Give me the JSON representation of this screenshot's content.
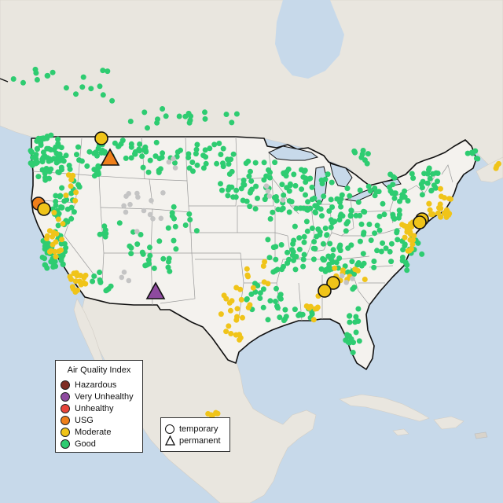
{
  "legend": {
    "title": "Air Quality Index",
    "items": [
      {
        "label": "Hazardous",
        "color": "#7e2d24"
      },
      {
        "label": "Very Unhealthy",
        "color": "#8e4a9f"
      },
      {
        "label": "Unhealthy",
        "color": "#e8443a"
      },
      {
        "label": "USG",
        "color": "#ef7f1a"
      },
      {
        "label": "Moderate",
        "color": "#f0c419"
      },
      {
        "label": "Good",
        "color": "#2ecc71"
      }
    ]
  },
  "monitor_types": {
    "items": [
      {
        "label": "temporary",
        "symbol": "circle"
      },
      {
        "label": "permanent",
        "symbol": "triangle"
      }
    ]
  },
  "colors": {
    "water": "#c7d9ea",
    "land_us": "#f4f2ee",
    "land_other": "#e8e4dc",
    "offline_station": "#c4c4c4"
  },
  "highlighted_monitors": [
    {
      "type": "temporary",
      "category": "Moderate"
    },
    {
      "type": "permanent",
      "category": "USG"
    },
    {
      "type": "temporary",
      "category": "USG"
    },
    {
      "type": "temporary",
      "category": "Moderate"
    },
    {
      "type": "permanent",
      "category": "Very Unhealthy"
    },
    {
      "type": "temporary",
      "category": "Moderate"
    },
    {
      "type": "temporary",
      "category": "Moderate"
    },
    {
      "type": "temporary",
      "category": "Moderate"
    },
    {
      "type": "temporary",
      "category": "Moderate"
    }
  ]
}
